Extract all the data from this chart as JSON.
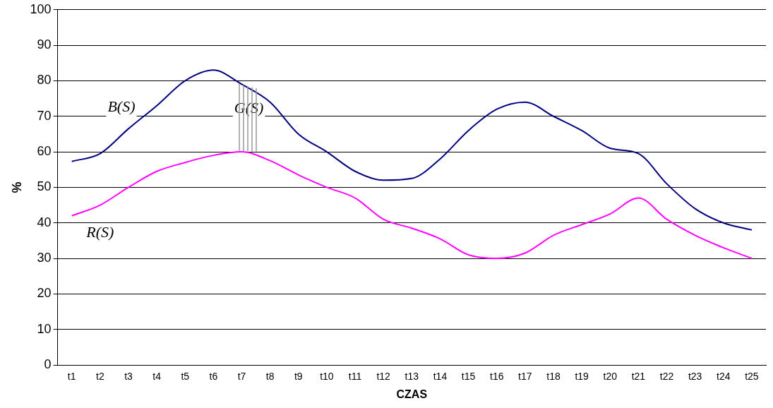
{
  "chart_data": {
    "type": "line",
    "xlabel": "CZAS",
    "ylabel": "%",
    "categories": [
      "t1",
      "t2",
      "t3",
      "t4",
      "t5",
      "t6",
      "t7",
      "t8",
      "t9",
      "t10",
      "t11",
      "t12",
      "t13",
      "t14",
      "t15",
      "t16",
      "t17",
      "t18",
      "t19",
      "t20",
      "t21",
      "t22",
      "t23",
      "t24",
      "t25"
    ],
    "series": [
      {
        "name": "B(S)",
        "color": "#000080",
        "values": [
          57.3,
          59.5,
          66.5,
          73,
          80,
          83,
          79,
          74,
          65,
          60,
          54.5,
          52,
          52.5,
          58,
          66,
          72,
          74,
          70,
          66,
          61,
          59.5,
          51,
          44,
          40,
          38
        ]
      },
      {
        "name": "R(S)",
        "color": "#ff00ff",
        "values": [
          42,
          45,
          50,
          54.5,
          57,
          59,
          60,
          57.5,
          53.5,
          50,
          47,
          41,
          38.5,
          35.5,
          31,
          30,
          31.5,
          36.5,
          39.5,
          42.5,
          47,
          41,
          36.5,
          33,
          30
        ]
      }
    ],
    "annotations": [
      {
        "text": "G(S)",
        "x": "t7",
        "y": 79
      }
    ],
    "ylim": [
      0,
      100
    ],
    "yticks": [
      0,
      10,
      20,
      30,
      40,
      50,
      60,
      70,
      80,
      90,
      100
    ],
    "grid": "y",
    "legend": false,
    "marker": "none",
    "line_style": "solid"
  }
}
